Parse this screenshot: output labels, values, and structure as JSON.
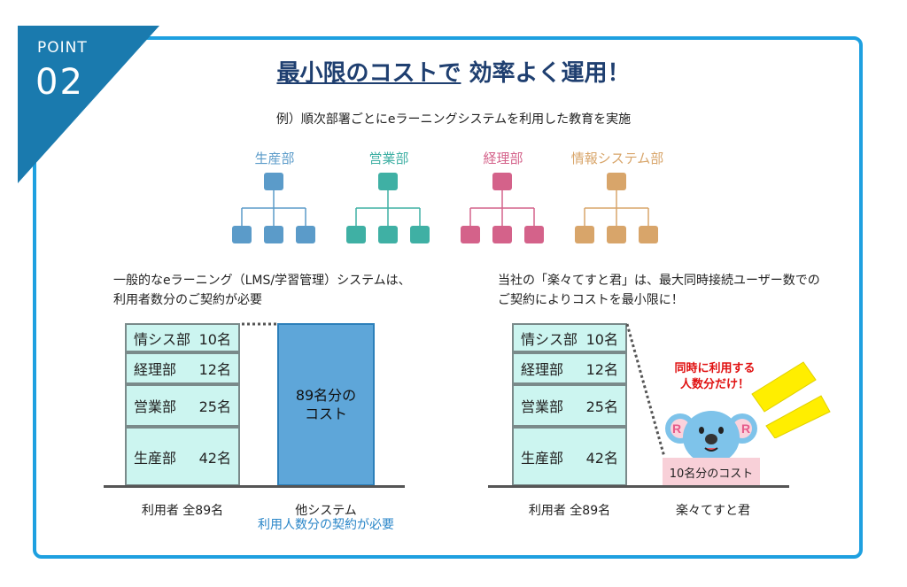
{
  "badge": {
    "label": "POINT",
    "number": "02"
  },
  "title": {
    "part1": "最小限のコストで",
    "part2": "効率よく運用！"
  },
  "subtitle": "例）順次部署ごとにeラーニングシステムを利用した教育を実施",
  "departments": [
    {
      "name": "生産部",
      "color": "#5b9bc9"
    },
    {
      "name": "営業部",
      "color": "#3fb0a4"
    },
    {
      "name": "経理部",
      "color": "#d4628a"
    },
    {
      "name": "情報システム部",
      "color": "#d8a56a"
    }
  ],
  "left": {
    "description_line1": "一般的なeラーニング（LMS/学習管理）システムは、",
    "description_line2": "利用者数分のご契約が必要",
    "rows": [
      {
        "dept": "情シス部",
        "count": "10名"
      },
      {
        "dept": "経理部",
        "count": "12名"
      },
      {
        "dept": "営業部",
        "count": "25名"
      },
      {
        "dept": "生産部",
        "count": "42名"
      }
    ],
    "users_caption": "利用者 全89名",
    "other_bar_line1": "89名分の",
    "other_bar_line2": "コスト",
    "other_caption": "他システム",
    "other_note": "利用人数分の契約が必要"
  },
  "right": {
    "description_line1": "当社の「楽々てすと君」は、最大同時接続ユーザー数での",
    "description_line2": "ご契約によりコストを最小限に！",
    "rows": [
      {
        "dept": "情シス部",
        "count": "10名"
      },
      {
        "dept": "経理部",
        "count": "12名"
      },
      {
        "dept": "営業部",
        "count": "25名"
      },
      {
        "dept": "生産部",
        "count": "42名"
      }
    ],
    "users_caption": "利用者 全89名",
    "callout_line1": "同時に利用する",
    "callout_line2": "人数分だけ！",
    "cost_label": "10名分のコスト",
    "product_caption": "楽々てすと君"
  },
  "colors": {
    "frame": "#1ea0e0",
    "badge": "#1a7aae",
    "box_fill": "#ccf5f0",
    "bar_fill": "#5ea6d9",
    "callout": "#e01010",
    "cost_label_bg": "#f8d0d8",
    "rays": "#ffee00",
    "note_blue": "#2a86c8"
  }
}
